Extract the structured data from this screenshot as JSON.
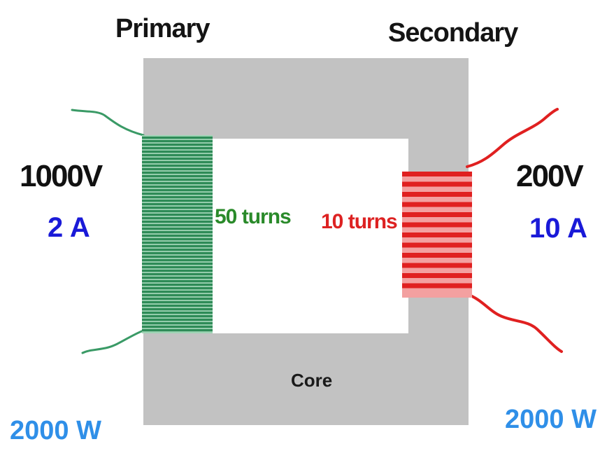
{
  "primary": {
    "title": "Primary",
    "voltage": "1000V",
    "current": "2 A",
    "turns_label": "50 turns",
    "power": "2000 W"
  },
  "secondary": {
    "title": "Secondary",
    "voltage": "200V",
    "current": "10 A",
    "turns_label": "10 turns",
    "power": "2000 W"
  },
  "core": {
    "label": "Core"
  },
  "colors": {
    "core": "#c2c2c2",
    "primary_coil": "#2e8b57",
    "primary_coil_gap": "#9ed3b4",
    "primary_text": "#2a8a2a",
    "primary_lead": "#3a9a66",
    "secondary_coil": "#e02020",
    "secondary_coil_gap": "#f3a0a0",
    "secondary_text": "#dd2222",
    "current_text": "#1a1ad8",
    "power_text": "#2f8fe8",
    "voltage_text": "#111111"
  },
  "icons": {
    "primary_winding": "coil-winding",
    "secondary_winding": "coil-winding"
  }
}
